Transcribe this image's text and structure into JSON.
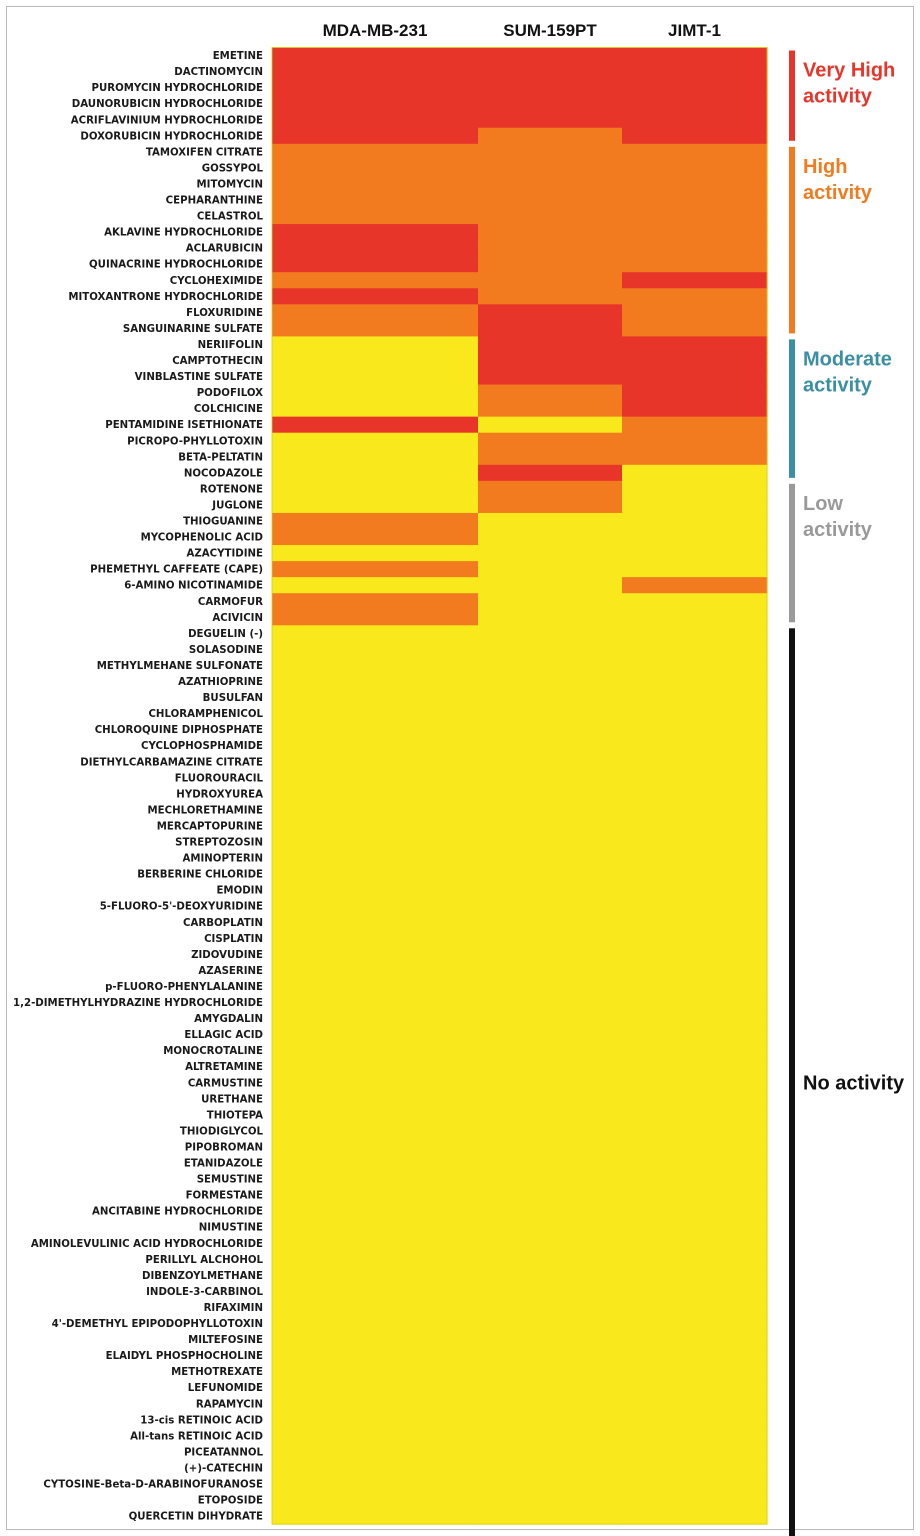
{
  "chart_data": {
    "type": "heatmap",
    "columns": [
      "MDA-MB-231",
      "SUM-159PT",
      "JIMT-1"
    ],
    "levels": [
      {
        "key": "very_high",
        "lines": [
          "Very High",
          "activity"
        ],
        "color": "#e8352a"
      },
      {
        "key": "high",
        "lines": [
          "High",
          "activity"
        ],
        "color": "#f27b20"
      },
      {
        "key": "moderate",
        "lines": [
          "Moderate",
          "activity"
        ],
        "color": "#3a8fa3"
      },
      {
        "key": "low",
        "lines": [
          "Low",
          "activity"
        ],
        "color": "#9a9a9a"
      },
      {
        "key": "none",
        "lines": [
          "No activity"
        ],
        "color": "#111111"
      }
    ],
    "cell_colors": {
      "R": "#e8352a",
      "O": "#f27b20",
      "Y": "#f8e81c"
    },
    "groups": [
      {
        "level": "very_high",
        "first_row": 0,
        "last_row": 5
      },
      {
        "level": "high",
        "first_row": 6,
        "last_row": 17
      },
      {
        "level": "moderate",
        "first_row": 18,
        "last_row": 26
      },
      {
        "level": "low",
        "first_row": 27,
        "last_row": 35
      },
      {
        "level": "none",
        "first_row": 36,
        "last_row": 92
      }
    ],
    "rows": [
      {
        "drug": "EMETINE",
        "values": [
          "R",
          "R",
          "R"
        ]
      },
      {
        "drug": "DACTINOMYCIN",
        "values": [
          "R",
          "R",
          "R"
        ]
      },
      {
        "drug": "PUROMYCIN HYDROCHLORIDE",
        "values": [
          "R",
          "R",
          "R"
        ]
      },
      {
        "drug": "DAUNORUBICIN HYDROCHLORIDE",
        "values": [
          "R",
          "R",
          "R"
        ]
      },
      {
        "drug": "ACRIFLAVINIUM HYDROCHLORIDE",
        "values": [
          "R",
          "R",
          "R"
        ]
      },
      {
        "drug": "DOXORUBICIN HYDROCHLORIDE",
        "values": [
          "R",
          "O",
          "R"
        ]
      },
      {
        "drug": "TAMOXIFEN CITRATE",
        "values": [
          "O",
          "O",
          "O"
        ]
      },
      {
        "drug": "GOSSYPOL",
        "values": [
          "O",
          "O",
          "O"
        ]
      },
      {
        "drug": "MITOMYCIN",
        "values": [
          "O",
          "O",
          "O"
        ]
      },
      {
        "drug": "CEPHARANTHINE",
        "values": [
          "O",
          "O",
          "O"
        ]
      },
      {
        "drug": "CELASTROL",
        "values": [
          "O",
          "O",
          "O"
        ]
      },
      {
        "drug": "AKLAVINE HYDROCHLORIDE",
        "values": [
          "R",
          "O",
          "O"
        ]
      },
      {
        "drug": "ACLARUBICIN",
        "values": [
          "R",
          "O",
          "O"
        ]
      },
      {
        "drug": "QUINACRINE HYDROCHLORIDE",
        "values": [
          "R",
          "O",
          "O"
        ]
      },
      {
        "drug": "CYCLOHEXIMIDE",
        "values": [
          "O",
          "O",
          "R"
        ]
      },
      {
        "drug": "MITOXANTRONE HYDROCHLORIDE",
        "values": [
          "R",
          "O",
          "O"
        ]
      },
      {
        "drug": "FLOXURIDINE",
        "values": [
          "O",
          "R",
          "O"
        ]
      },
      {
        "drug": "SANGUINARINE SULFATE",
        "values": [
          "O",
          "R",
          "O"
        ]
      },
      {
        "drug": "NERIIFOLIN",
        "values": [
          "Y",
          "R",
          "R"
        ]
      },
      {
        "drug": "CAMPTOTHECIN",
        "values": [
          "Y",
          "R",
          "R"
        ]
      },
      {
        "drug": "VINBLASTINE SULFATE",
        "values": [
          "Y",
          "R",
          "R"
        ]
      },
      {
        "drug": "PODOFILOX",
        "values": [
          "Y",
          "O",
          "R"
        ]
      },
      {
        "drug": "COLCHICINE",
        "values": [
          "Y",
          "O",
          "R"
        ]
      },
      {
        "drug": "PENTAMIDINE ISETHIONATE",
        "values": [
          "R",
          "Y",
          "O"
        ]
      },
      {
        "drug": "PICROPO-PHYLLOTOXIN",
        "values": [
          "Y",
          "O",
          "O"
        ]
      },
      {
        "drug": "BETA-PELTATIN",
        "values": [
          "Y",
          "O",
          "O"
        ]
      },
      {
        "drug": "NOCODAZOLE",
        "values": [
          "Y",
          "R",
          "Y"
        ]
      },
      {
        "drug": "ROTENONE",
        "values": [
          "Y",
          "O",
          "Y"
        ]
      },
      {
        "drug": "JUGLONE",
        "values": [
          "Y",
          "O",
          "Y"
        ]
      },
      {
        "drug": "THIOGUANINE",
        "values": [
          "O",
          "Y",
          "Y"
        ]
      },
      {
        "drug": "MYCOPHENOLIC ACID",
        "values": [
          "O",
          "Y",
          "Y"
        ]
      },
      {
        "drug": "AZACYTIDINE",
        "values": [
          "Y",
          "Y",
          "Y"
        ]
      },
      {
        "drug": "PHEMETHYL CAFFEATE (CAPE)",
        "values": [
          "O",
          "Y",
          "Y"
        ]
      },
      {
        "drug": "6-AMINO NICOTINAMIDE",
        "values": [
          "Y",
          "Y",
          "O"
        ]
      },
      {
        "drug": "CARMOFUR",
        "values": [
          "O",
          "Y",
          "Y"
        ]
      },
      {
        "drug": "ACIVICIN",
        "values": [
          "O",
          "Y",
          "Y"
        ]
      },
      {
        "drug": "DEGUELIN (-)",
        "values": [
          "Y",
          "Y",
          "Y"
        ]
      },
      {
        "drug": "SOLASODINE",
        "values": [
          "Y",
          "Y",
          "Y"
        ]
      },
      {
        "drug": "METHYLMEHANE SULFONATE",
        "values": [
          "Y",
          "Y",
          "Y"
        ]
      },
      {
        "drug": "AZATHIOPRINE",
        "values": [
          "Y",
          "Y",
          "Y"
        ]
      },
      {
        "drug": "BUSULFAN",
        "values": [
          "Y",
          "Y",
          "Y"
        ]
      },
      {
        "drug": "CHLORAMPHENICOL",
        "values": [
          "Y",
          "Y",
          "Y"
        ]
      },
      {
        "drug": "CHLOROQUINE DIPHOSPHATE",
        "values": [
          "Y",
          "Y",
          "Y"
        ]
      },
      {
        "drug": "CYCLOPHOSPHAMIDE",
        "values": [
          "Y",
          "Y",
          "Y"
        ]
      },
      {
        "drug": "DIETHYLCARBAMAZINE CITRATE",
        "values": [
          "Y",
          "Y",
          "Y"
        ]
      },
      {
        "drug": "FLUOROURACIL",
        "values": [
          "Y",
          "Y",
          "Y"
        ]
      },
      {
        "drug": "HYDROXYUREA",
        "values": [
          "Y",
          "Y",
          "Y"
        ]
      },
      {
        "drug": "MECHLORETHAMINE",
        "values": [
          "Y",
          "Y",
          "Y"
        ]
      },
      {
        "drug": "MERCAPTOPURINE",
        "values": [
          "Y",
          "Y",
          "Y"
        ]
      },
      {
        "drug": "STREPTOZOSIN",
        "values": [
          "Y",
          "Y",
          "Y"
        ]
      },
      {
        "drug": "AMINOPTERIN",
        "values": [
          "Y",
          "Y",
          "Y"
        ]
      },
      {
        "drug": "BERBERINE CHLORIDE",
        "values": [
          "Y",
          "Y",
          "Y"
        ]
      },
      {
        "drug": "EMODIN",
        "values": [
          "Y",
          "Y",
          "Y"
        ]
      },
      {
        "drug": "5-FLUORO-5'-DEOXYURIDINE",
        "values": [
          "Y",
          "Y",
          "Y"
        ]
      },
      {
        "drug": "CARBOPLATIN",
        "values": [
          "Y",
          "Y",
          "Y"
        ]
      },
      {
        "drug": "CISPLATIN",
        "values": [
          "Y",
          "Y",
          "Y"
        ]
      },
      {
        "drug": "ZIDOVUDINE",
        "values": [
          "Y",
          "Y",
          "Y"
        ]
      },
      {
        "drug": "AZASERINE",
        "values": [
          "Y",
          "Y",
          "Y"
        ]
      },
      {
        "drug": "p-FLUORO-PHENYLALANINE",
        "values": [
          "Y",
          "Y",
          "Y"
        ]
      },
      {
        "drug": "1,2-DIMETHYLHYDRAZINE HYDROCHLORIDE",
        "values": [
          "Y",
          "Y",
          "Y"
        ]
      },
      {
        "drug": "AMYGDALIN",
        "values": [
          "Y",
          "Y",
          "Y"
        ]
      },
      {
        "drug": "ELLAGIC ACID",
        "values": [
          "Y",
          "Y",
          "Y"
        ]
      },
      {
        "drug": "MONOCROTALINE",
        "values": [
          "Y",
          "Y",
          "Y"
        ]
      },
      {
        "drug": "ALTRETAMINE",
        "values": [
          "Y",
          "Y",
          "Y"
        ]
      },
      {
        "drug": "CARMUSTINE",
        "values": [
          "Y",
          "Y",
          "Y"
        ]
      },
      {
        "drug": "URETHANE",
        "values": [
          "Y",
          "Y",
          "Y"
        ]
      },
      {
        "drug": "THIOTEPA",
        "values": [
          "Y",
          "Y",
          "Y"
        ]
      },
      {
        "drug": "THIODIGLYCOL",
        "values": [
          "Y",
          "Y",
          "Y"
        ]
      },
      {
        "drug": "PIPOBROMAN",
        "values": [
          "Y",
          "Y",
          "Y"
        ]
      },
      {
        "drug": "ETANIDAZOLE",
        "values": [
          "Y",
          "Y",
          "Y"
        ]
      },
      {
        "drug": "SEMUSTINE",
        "values": [
          "Y",
          "Y",
          "Y"
        ]
      },
      {
        "drug": "FORMESTANE",
        "values": [
          "Y",
          "Y",
          "Y"
        ]
      },
      {
        "drug": "ANCITABINE HYDROCHLORIDE",
        "values": [
          "Y",
          "Y",
          "Y"
        ]
      },
      {
        "drug": "NIMUSTINE",
        "values": [
          "Y",
          "Y",
          "Y"
        ]
      },
      {
        "drug": "AMINOLEVULINIC ACID HYDROCHLORIDE",
        "values": [
          "Y",
          "Y",
          "Y"
        ]
      },
      {
        "drug": "PERILLYL ALCHOHOL",
        "values": [
          "Y",
          "Y",
          "Y"
        ]
      },
      {
        "drug": "DIBENZOYLMETHANE",
        "values": [
          "Y",
          "Y",
          "Y"
        ]
      },
      {
        "drug": "INDOLE-3-CARBINOL",
        "values": [
          "Y",
          "Y",
          "Y"
        ]
      },
      {
        "drug": "RIFAXIMIN",
        "values": [
          "Y",
          "Y",
          "Y"
        ]
      },
      {
        "drug": "4'-DEMETHYL EPIPODOPHYLLOTOXIN",
        "values": [
          "Y",
          "Y",
          "Y"
        ]
      },
      {
        "drug": "MILTEFOSINE",
        "values": [
          "Y",
          "Y",
          "Y"
        ]
      },
      {
        "drug": "ELAIDYL PHOSPHOCHOLINE",
        "values": [
          "Y",
          "Y",
          "Y"
        ]
      },
      {
        "drug": "METHOTREXATE",
        "values": [
          "Y",
          "Y",
          "Y"
        ]
      },
      {
        "drug": "LEFUNOMIDE",
        "values": [
          "Y",
          "Y",
          "Y"
        ]
      },
      {
        "drug": "RAPAMYCIN",
        "values": [
          "Y",
          "Y",
          "Y"
        ]
      },
      {
        "drug": "13-cis RETINOIC ACID",
        "values": [
          "Y",
          "Y",
          "Y"
        ]
      },
      {
        "drug": "All-tans RETINOIC ACID",
        "values": [
          "Y",
          "Y",
          "Y"
        ]
      },
      {
        "drug": "PICEATANNOL",
        "values": [
          "Y",
          "Y",
          "Y"
        ]
      },
      {
        "drug": "(+)-CATECHIN",
        "values": [
          "Y",
          "Y",
          "Y"
        ]
      },
      {
        "drug": "CYTOSINE-Beta-D-ARABINOFURANOSE",
        "values": [
          "Y",
          "Y",
          "Y"
        ]
      },
      {
        "drug": "ETOPOSIDE",
        "values": [
          "Y",
          "Y",
          "Y"
        ]
      },
      {
        "drug": "QUERCETIN DIHYDRATE",
        "values": [
          "Y",
          "Y",
          "Y"
        ]
      }
    ]
  }
}
